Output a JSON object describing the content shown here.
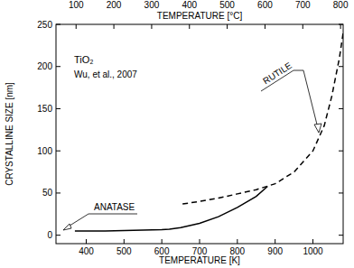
{
  "chart_data": {
    "type": "line",
    "x_label": "TEMPERATURE [K]",
    "x2_label": "TEMPERATURE [°C]",
    "y_label": "CRYSTALLINE SIZE [nm]",
    "annotations": [
      "TiO₂",
      "Wu, et al., 2007"
    ],
    "xlim": [
      320,
      1080
    ],
    "xticks": [
      400,
      500,
      600,
      700,
      800,
      900,
      1000
    ],
    "x2lim": [
      46.85,
      806.85
    ],
    "x2ticks": [
      100,
      200,
      300,
      400,
      500,
      600,
      700,
      800
    ],
    "ylim": [
      -10,
      250
    ],
    "yticks": [
      0,
      50,
      100,
      150,
      200,
      250
    ],
    "series": [
      {
        "name": "ANATASE",
        "color": "#000000",
        "line_style": "solid",
        "x": [
          370,
          400,
          450,
          500,
          550,
          600,
          620,
          650,
          700,
          750,
          800,
          850,
          880
        ],
        "values": [
          5,
          5,
          5,
          5.5,
          6,
          6.5,
          7,
          9,
          14,
          22,
          33,
          46,
          58
        ]
      },
      {
        "name": "RUTILE",
        "color": "#000000",
        "line_style": "dashed",
        "x": [
          655,
          700,
          750,
          800,
          850,
          900,
          950,
          1000,
          1030,
          1050,
          1070,
          1080
        ],
        "values": [
          37,
          40,
          44,
          49,
          54,
          61,
          75,
          100,
          130,
          165,
          210,
          240
        ]
      }
    ]
  }
}
